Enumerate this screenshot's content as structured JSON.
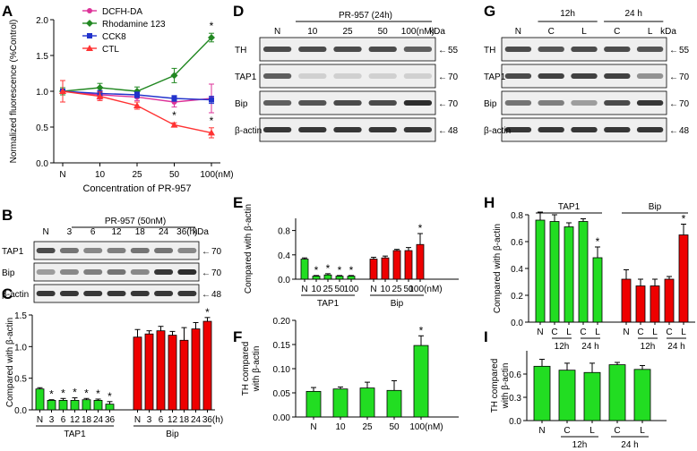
{
  "colors": {
    "green": "#22dd22",
    "red": "#ee0000",
    "pink": "#dd3399",
    "dgreen": "#228822",
    "blue": "#2233cc",
    "tred": "#ff3333",
    "blot_bg": "#efefef",
    "band": "#222222"
  },
  "chart_data": [
    {
      "panel": "A",
      "type": "line",
      "ylabel": "Normalized fluorescence (%Control)",
      "xlabel": "Concentration of PR-957",
      "categories": [
        "N",
        "10",
        "25",
        "50",
        "100(nM)"
      ],
      "ylim": [
        0,
        2.0
      ],
      "yticks": [
        "0.0",
        "0.5",
        "1.0",
        "1.5",
        "2.0"
      ],
      "series": [
        {
          "name": "DCFH-DA",
          "color": "pink",
          "marker": "circle",
          "values": [
            1.0,
            0.95,
            0.92,
            0.85,
            0.9
          ],
          "err": [
            0.05,
            0.06,
            0.05,
            0.07,
            0.2
          ],
          "stars": []
        },
        {
          "name": "Rhodamine 123",
          "color": "dgreen",
          "marker": "diamond",
          "values": [
            1.0,
            1.05,
            1.0,
            1.22,
            1.75
          ],
          "err": [
            0.05,
            0.06,
            0.06,
            0.1,
            0.06
          ],
          "stars": [
            4
          ]
        },
        {
          "name": "CCK8",
          "color": "blue",
          "marker": "square",
          "values": [
            1.0,
            0.97,
            0.95,
            0.9,
            0.88
          ],
          "err": [
            0.03,
            0.04,
            0.04,
            0.04,
            0.05
          ],
          "stars": []
        },
        {
          "name": "CTL",
          "color": "tred",
          "marker": "triangle",
          "values": [
            1.0,
            0.93,
            0.8,
            0.53,
            0.42
          ],
          "err": [
            0.15,
            0.06,
            0.05,
            0.03,
            0.07
          ],
          "stars": [
            3,
            4
          ]
        }
      ]
    },
    {
      "panel": "B",
      "type": "blot",
      "header": "PR-957 (50nM)",
      "unit_label": "kDa",
      "lanes": [
        "N",
        "3",
        "6",
        "12",
        "18",
        "24",
        "36(h)"
      ],
      "rows": [
        "TAP1",
        "Bip",
        "β-actin"
      ],
      "mw": [
        "70",
        "70",
        "48"
      ]
    },
    {
      "panel": "C",
      "type": "bar",
      "ylabel": "Compared with β-actin",
      "ylim": [
        0,
        1.5
      ],
      "yticks": [
        "0.0",
        "0.5",
        "1.0",
        "1.5"
      ],
      "groups": [
        {
          "name": "TAP1",
          "color": "green",
          "categories": [
            "N",
            "3",
            "6",
            "12",
            "18",
            "24",
            "36"
          ],
          "values": [
            0.33,
            0.15,
            0.15,
            0.15,
            0.16,
            0.15,
            0.09
          ],
          "err": [
            0.02,
            0.01,
            0.03,
            0.04,
            0.02,
            0.02,
            0.04
          ],
          "stars": [
            1,
            2,
            3,
            4,
            5,
            6
          ]
        },
        {
          "name": "Bip",
          "color": "red",
          "categories": [
            "N",
            "3",
            "6",
            "12",
            "18",
            "24",
            "36(h)"
          ],
          "values": [
            1.15,
            1.2,
            1.25,
            1.18,
            1.1,
            1.28,
            1.4
          ],
          "err": [
            0.12,
            0.05,
            0.07,
            0.06,
            0.2,
            0.1,
            0.06
          ],
          "stars": [
            6
          ]
        }
      ]
    },
    {
      "panel": "D",
      "type": "blot",
      "header": "PR-957 (24h)",
      "unit_label": "kDa",
      "lanes": [
        "N",
        "10",
        "25",
        "50",
        "100(nM)"
      ],
      "rows": [
        "TH",
        "TAP1",
        "Bip",
        "β-actin"
      ],
      "mw": [
        "55",
        "70",
        "70",
        "48"
      ]
    },
    {
      "panel": "E",
      "type": "bar",
      "ylabel": "Compared with β-actin",
      "ylim": [
        0,
        1.0
      ],
      "yticks": [
        "0.0",
        "0.4",
        "0.8"
      ],
      "groups": [
        {
          "name": "TAP1",
          "color": "green",
          "categories": [
            "N",
            "10",
            "25",
            "50",
            "100"
          ],
          "values": [
            0.33,
            0.05,
            0.07,
            0.05,
            0.05
          ],
          "err": [
            0.02,
            0.01,
            0.02,
            0.01,
            0.01
          ],
          "stars": [
            1,
            2,
            3,
            4
          ]
        },
        {
          "name": "Bip",
          "color": "red",
          "categories": [
            "N",
            "10",
            "25",
            "50",
            "100(nM)"
          ],
          "values": [
            0.33,
            0.35,
            0.47,
            0.47,
            0.57
          ],
          "err": [
            0.03,
            0.03,
            0.02,
            0.05,
            0.18
          ],
          "stars": [
            4
          ]
        }
      ]
    },
    {
      "panel": "F",
      "type": "bar",
      "ylabel": "TH compared with β-actin",
      "ylim": [
        0,
        0.2
      ],
      "yticks": [
        "0.00",
        "0.05",
        "0.10",
        "0.15",
        "0.20"
      ],
      "groups": [
        {
          "name": "",
          "color": "green",
          "categories": [
            "N",
            "10",
            "25",
            "50",
            "100(nM)"
          ],
          "values": [
            0.053,
            0.058,
            0.06,
            0.055,
            0.148
          ],
          "err": [
            0.008,
            0.004,
            0.012,
            0.02,
            0.02
          ],
          "stars": [
            4
          ]
        }
      ]
    },
    {
      "panel": "G",
      "type": "blot",
      "header": "",
      "unit_label": "kDa",
      "time_labels": [
        "12h",
        "24 h"
      ],
      "lanes": [
        "N",
        "C",
        "L",
        "C",
        "L"
      ],
      "rows": [
        "TH",
        "TAP1",
        "Bip",
        "β-actin"
      ],
      "mw": [
        "55",
        "70",
        "70",
        "48"
      ]
    },
    {
      "panel": "H",
      "type": "bar",
      "ylabel": "Compared with β-actin",
      "ylim": [
        0,
        0.8
      ],
      "yticks": [
        "0.0",
        "0.2",
        "0.4",
        "0.6",
        "0.8"
      ],
      "groups": [
        {
          "name": "TAP1",
          "color": "green",
          "categories": [
            "N",
            "C",
            "L",
            "C",
            "L"
          ],
          "values": [
            0.76,
            0.75,
            0.71,
            0.75,
            0.48
          ],
          "err": [
            0.06,
            0.05,
            0.03,
            0.02,
            0.08
          ],
          "stars": [
            4
          ]
        },
        {
          "name": "Bip",
          "color": "red",
          "categories": [
            "N",
            "C",
            "L",
            "C",
            "L"
          ],
          "values": [
            0.32,
            0.27,
            0.27,
            0.32,
            0.65
          ],
          "err": [
            0.07,
            0.05,
            0.05,
            0.02,
            0.08
          ],
          "stars": [
            4
          ]
        }
      ],
      "time_labels": [
        "12h",
        "24 h"
      ]
    },
    {
      "panel": "I",
      "type": "bar",
      "ylabel": "TH compared with β-actin",
      "ylim": [
        0,
        0.9
      ],
      "yticks": [
        "0.0",
        "0.3",
        "0.6"
      ],
      "groups": [
        {
          "name": "",
          "color": "green",
          "categories": [
            "N",
            "C",
            "L",
            "C",
            "L"
          ],
          "values": [
            0.7,
            0.65,
            0.62,
            0.72,
            0.66
          ],
          "err": [
            0.09,
            0.09,
            0.12,
            0.03,
            0.05
          ],
          "stars": []
        }
      ],
      "time_labels": [
        "12h",
        "24 h"
      ]
    }
  ]
}
